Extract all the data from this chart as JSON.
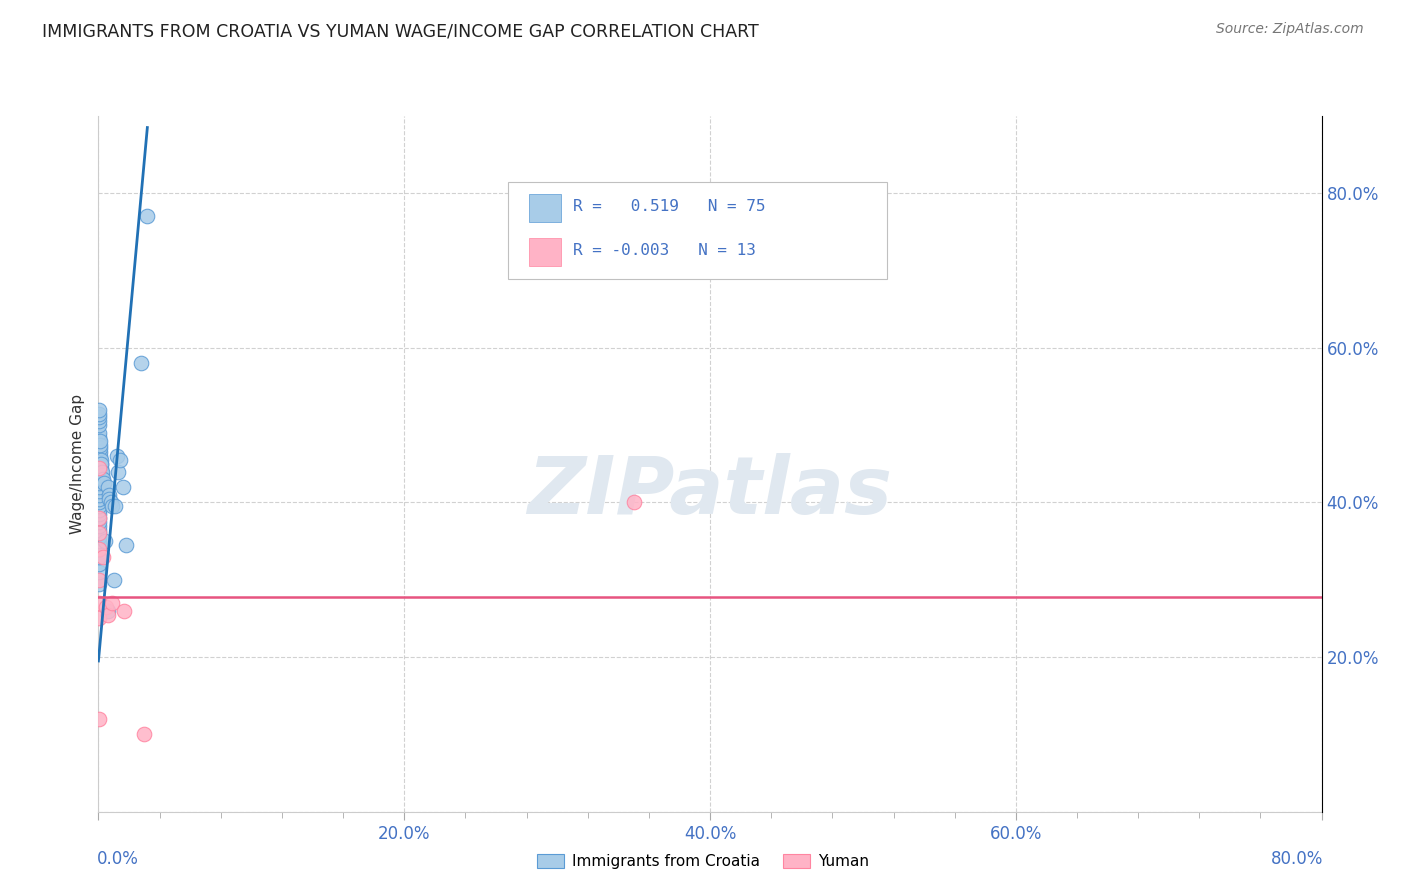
{
  "title": "IMMIGRANTS FROM CROATIA VS YUMAN WAGE/INCOME GAP CORRELATION CHART",
  "source": "Source: ZipAtlas.com",
  "ylabel": "Wage/Income Gap",
  "legend_label_blue": "Immigrants from Croatia",
  "legend_label_pink": "Yuman",
  "blue_color": "#a8cce8",
  "pink_color": "#ffb3c6",
  "blue_edge_color": "#5b9bd5",
  "pink_edge_color": "#ff85a1",
  "blue_line_color": "#2171b5",
  "pink_line_color": "#e75480",
  "axis_label_color": "#4472c4",
  "watermark_text": "ZIPatlas",
  "blue_dots": [
    [
      0.0005,
      0.295
    ],
    [
      0.0005,
      0.31
    ],
    [
      0.0005,
      0.32
    ],
    [
      0.0005,
      0.33
    ],
    [
      0.0005,
      0.34
    ],
    [
      0.0005,
      0.35
    ],
    [
      0.0005,
      0.355
    ],
    [
      0.0005,
      0.36
    ],
    [
      0.0005,
      0.365
    ],
    [
      0.0005,
      0.37
    ],
    [
      0.0005,
      0.375
    ],
    [
      0.0005,
      0.38
    ],
    [
      0.0005,
      0.385
    ],
    [
      0.0005,
      0.39
    ],
    [
      0.0005,
      0.395
    ],
    [
      0.0005,
      0.4
    ],
    [
      0.0005,
      0.405
    ],
    [
      0.0005,
      0.41
    ],
    [
      0.0005,
      0.415
    ],
    [
      0.0005,
      0.42
    ],
    [
      0.0005,
      0.425
    ],
    [
      0.0005,
      0.43
    ],
    [
      0.0005,
      0.435
    ],
    [
      0.0005,
      0.44
    ],
    [
      0.0005,
      0.445
    ],
    [
      0.0005,
      0.45
    ],
    [
      0.0005,
      0.455
    ],
    [
      0.0005,
      0.46
    ],
    [
      0.0005,
      0.465
    ],
    [
      0.0005,
      0.47
    ],
    [
      0.0005,
      0.475
    ],
    [
      0.0005,
      0.48
    ],
    [
      0.0005,
      0.485
    ],
    [
      0.0005,
      0.49
    ],
    [
      0.0005,
      0.5
    ],
    [
      0.0005,
      0.505
    ],
    [
      0.0005,
      0.51
    ],
    [
      0.0005,
      0.515
    ],
    [
      0.0005,
      0.52
    ],
    [
      0.001,
      0.455
    ],
    [
      0.001,
      0.46
    ],
    [
      0.001,
      0.465
    ],
    [
      0.001,
      0.47
    ],
    [
      0.001,
      0.475
    ],
    [
      0.001,
      0.48
    ],
    [
      0.001,
      0.445
    ],
    [
      0.001,
      0.44
    ],
    [
      0.0015,
      0.445
    ],
    [
      0.0015,
      0.45
    ],
    [
      0.0015,
      0.455
    ],
    [
      0.002,
      0.44
    ],
    [
      0.002,
      0.45
    ],
    [
      0.0025,
      0.435
    ],
    [
      0.0025,
      0.44
    ],
    [
      0.003,
      0.43
    ],
    [
      0.0035,
      0.425
    ],
    [
      0.004,
      0.35
    ],
    [
      0.006,
      0.42
    ],
    [
      0.006,
      0.26
    ],
    [
      0.007,
      0.41
    ],
    [
      0.007,
      0.405
    ],
    [
      0.008,
      0.4
    ],
    [
      0.009,
      0.395
    ],
    [
      0.01,
      0.3
    ],
    [
      0.011,
      0.395
    ],
    [
      0.012,
      0.46
    ],
    [
      0.013,
      0.44
    ],
    [
      0.014,
      0.455
    ],
    [
      0.016,
      0.42
    ],
    [
      0.018,
      0.345
    ],
    [
      0.028,
      0.58
    ],
    [
      0.032,
      0.77
    ]
  ],
  "pink_dots": [
    [
      0.0005,
      0.445
    ],
    [
      0.0005,
      0.38
    ],
    [
      0.0005,
      0.36
    ],
    [
      0.0005,
      0.34
    ],
    [
      0.0005,
      0.3
    ],
    [
      0.0005,
      0.27
    ],
    [
      0.0005,
      0.25
    ],
    [
      0.0005,
      0.12
    ],
    [
      0.003,
      0.33
    ],
    [
      0.005,
      0.265
    ],
    [
      0.006,
      0.255
    ],
    [
      0.009,
      0.27
    ],
    [
      0.017,
      0.26
    ],
    [
      0.03,
      0.1
    ],
    [
      0.35,
      0.4
    ]
  ],
  "xlim": [
    0.0,
    0.8
  ],
  "ylim": [
    0.0,
    0.9
  ],
  "xticks_major": [
    0.0,
    0.2,
    0.4,
    0.6,
    0.8
  ],
  "yticks_major": [
    0.0,
    0.2,
    0.4,
    0.6,
    0.8
  ],
  "blue_line_x0": 0.0,
  "blue_line_y0": 0.195,
  "blue_line_x1": 0.032,
  "blue_line_y1": 0.885,
  "pink_line_y": 0.278
}
